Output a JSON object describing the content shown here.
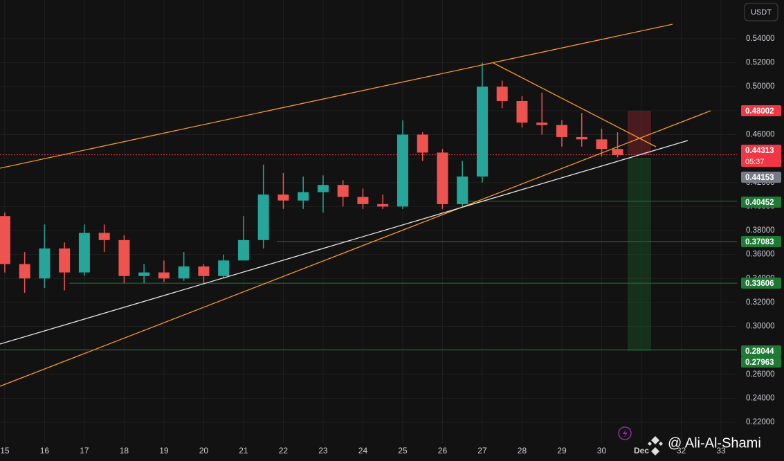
{
  "chart_data": {
    "type": "candlestick",
    "currency": "USDT",
    "watermark": "@ Ali-Al-Shami",
    "countdown": "05:37",
    "x": [
      15,
      15.5,
      16,
      16.5,
      17,
      17.5,
      18,
      18.5,
      19,
      19.5,
      20,
      20.5,
      21,
      21.5,
      22,
      22.5,
      23,
      23.5,
      24,
      24.5,
      25,
      25.5,
      26,
      26.5,
      27,
      27.5,
      28,
      28.5,
      29,
      29.5,
      30,
      30.4
    ],
    "open": [
      0.392,
      0.352,
      0.34,
      0.365,
      0.345,
      0.378,
      0.372,
      0.342,
      0.345,
      0.34,
      0.35,
      0.342,
      0.355,
      0.372,
      0.41,
      0.405,
      0.412,
      0.418,
      0.408,
      0.402,
      0.4,
      0.46,
      0.445,
      0.402,
      0.425,
      0.5,
      0.488,
      0.47,
      0.468,
      0.458,
      0.456,
      0.448
    ],
    "high": [
      0.395,
      0.362,
      0.385,
      0.37,
      0.385,
      0.385,
      0.376,
      0.352,
      0.355,
      0.362,
      0.352,
      0.36,
      0.392,
      0.435,
      0.428,
      0.425,
      0.426,
      0.422,
      0.415,
      0.41,
      0.472,
      0.462,
      0.448,
      0.438,
      0.52,
      0.505,
      0.492,
      0.495,
      0.472,
      0.478,
      0.465,
      0.462
    ],
    "low": [
      0.345,
      0.328,
      0.332,
      0.33,
      0.342,
      0.362,
      0.336,
      0.336,
      0.337,
      0.338,
      0.336,
      0.34,
      0.355,
      0.365,
      0.398,
      0.398,
      0.395,
      0.4,
      0.398,
      0.398,
      0.398,
      0.438,
      0.398,
      0.4,
      0.42,
      0.482,
      0.466,
      0.46,
      0.45,
      0.45,
      0.442,
      0.441
    ],
    "close": [
      0.352,
      0.34,
      0.365,
      0.345,
      0.378,
      0.372,
      0.342,
      0.345,
      0.34,
      0.35,
      0.342,
      0.355,
      0.372,
      0.41,
      0.405,
      0.412,
      0.418,
      0.408,
      0.402,
      0.4,
      0.46,
      0.445,
      0.402,
      0.425,
      0.5,
      0.488,
      0.47,
      0.468,
      0.458,
      0.456,
      0.448,
      0.443
    ],
    "up_color": "#26a69a",
    "down_color": "#ef5350",
    "xlim": [
      14.88,
      33.4
    ],
    "xticks": [
      15,
      16,
      17,
      18,
      19,
      20,
      21,
      22,
      23,
      24,
      25,
      26,
      27,
      28,
      29,
      30,
      {
        "value": 31,
        "label": "Dec"
      },
      32,
      33
    ],
    "ylim": [
      0.2027,
      0.5723
    ],
    "yticks": [
      {
        "value": 0.22,
        "label": "0.22000"
      },
      {
        "value": 0.24,
        "label": "0.24000"
      },
      {
        "value": 0.26,
        "label": "0.26000"
      },
      {
        "value": 0.28,
        "label": "0.28000"
      },
      {
        "value": 0.3,
        "label": "0.30000"
      },
      {
        "value": 0.32,
        "label": "0.32000"
      },
      {
        "value": 0.34,
        "label": "0.34000"
      },
      {
        "value": 0.36,
        "label": "0.36000"
      },
      {
        "value": 0.38,
        "label": "0.38000"
      },
      {
        "value": 0.4,
        "label": "0.40000"
      },
      {
        "value": 0.42,
        "label": "0.42000"
      },
      {
        "value": 0.44,
        "label": "0.44000"
      },
      {
        "value": 0.46,
        "label": "0.46000"
      },
      {
        "value": 0.48,
        "label": "0.48000"
      },
      {
        "value": 0.5,
        "label": "0.50000"
      },
      {
        "value": 0.52,
        "label": "0.52000"
      },
      {
        "value": 0.54,
        "label": "0.54000"
      }
    ],
    "grid": true,
    "levels": [
      {
        "value": 0.48002,
        "color": "#f23645"
      },
      {
        "value": 0.44313,
        "color": "#f23645"
      },
      {
        "value": 0.44153,
        "color": "#787b86"
      },
      {
        "value": 0.40452,
        "color": "#1f7a35"
      },
      {
        "value": 0.37083,
        "color": "#1f7a35"
      },
      {
        "value": 0.33606,
        "color": "#1f7a35"
      },
      {
        "value": 0.28044,
        "color": "#1f7a35"
      },
      {
        "value": 0.27963,
        "color": "#1f7a35"
      }
    ]
  }
}
